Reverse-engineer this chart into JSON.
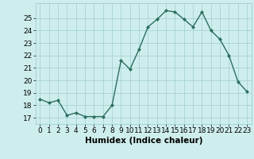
{
  "x": [
    0,
    1,
    2,
    3,
    4,
    5,
    6,
    7,
    8,
    9,
    10,
    11,
    12,
    13,
    14,
    15,
    16,
    17,
    18,
    19,
    20,
    21,
    22,
    23
  ],
  "y": [
    18.5,
    18.2,
    18.4,
    17.2,
    17.4,
    17.1,
    17.1,
    17.1,
    18.0,
    21.6,
    20.9,
    22.5,
    24.3,
    24.9,
    25.6,
    25.5,
    24.9,
    24.3,
    25.5,
    24.0,
    23.3,
    22.0,
    19.9,
    19.1
  ],
  "line_color": "#2d6e5e",
  "marker": "D",
  "marker_size": 2.0,
  "linewidth": 1.0,
  "xlabel": "Humidex (Indice chaleur)",
  "xlim": [
    -0.5,
    23.5
  ],
  "ylim": [
    16.5,
    26.2
  ],
  "yticks": [
    17,
    18,
    19,
    20,
    21,
    22,
    23,
    24,
    25
  ],
  "xticks": [
    0,
    1,
    2,
    3,
    4,
    5,
    6,
    7,
    8,
    9,
    10,
    11,
    12,
    13,
    14,
    15,
    16,
    17,
    18,
    19,
    20,
    21,
    22,
    23
  ],
  "bg_color": "#ceeeed",
  "grid_color": "#9ecece",
  "tick_fontsize": 6.5,
  "xlabel_fontsize": 7.5,
  "xlabel_bold": true
}
